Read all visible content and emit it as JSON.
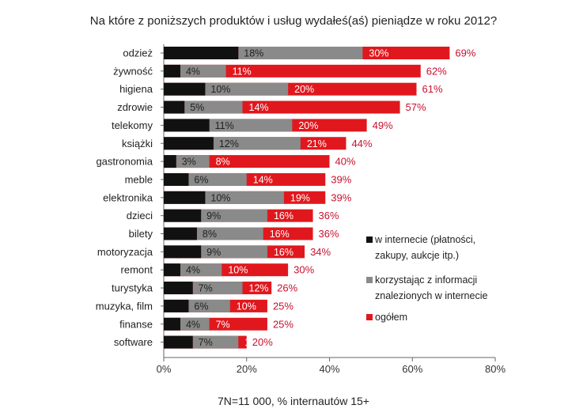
{
  "chart_data": {
    "type": "bar",
    "title": "Na które z poniższych produktów i usług wydałeś(aś) pieniądze w roku 2012?",
    "footnote": "7N=11 000, % internautów 15+",
    "categories": [
      "odzież",
      "żywność",
      "higiena",
      "zdrowie",
      "telekomy",
      "książki",
      "gastronomia",
      "meble",
      "elektronika",
      "dzieci",
      "bilety",
      "motoryzacja",
      "remont",
      "turystyka",
      "muzyka, film",
      "finanse",
      "software"
    ],
    "series": [
      {
        "name": "w internecie (płatności, zakupy, aukcje itp.)",
        "color": "#111111",
        "values": [
          18,
          4,
          10,
          5,
          11,
          12,
          3,
          6,
          10,
          9,
          8,
          9,
          4,
          7,
          6,
          4,
          7
        ]
      },
      {
        "name": "korzystając z informacji znalezionych w internecie",
        "color": "#8a8a8a",
        "values": [
          30,
          11,
          20,
          14,
          20,
          21,
          8,
          14,
          19,
          16,
          16,
          16,
          10,
          12,
          10,
          7,
          11
        ]
      },
      {
        "name": "ogółem",
        "color": "#e0181e",
        "values": [
          69,
          62,
          61,
          57,
          49,
          44,
          40,
          39,
          39,
          36,
          36,
          34,
          30,
          26,
          25,
          25,
          20
        ]
      }
    ],
    "legend": [
      {
        "lines": [
          "w internecie (płatności,",
          "zakupy, aukcje itp.)"
        ],
        "color": "#111111"
      },
      {
        "lines": [
          "korzystając z informacji",
          "znalezionych w internecie"
        ],
        "color": "#8a8a8a"
      },
      {
        "lines": [
          "ogółem"
        ],
        "color": "#e0181e"
      }
    ],
    "xlim": [
      0,
      80
    ],
    "xticks": [
      0,
      20,
      40,
      60,
      80
    ],
    "xtick_labels": [
      "0%",
      "20%",
      "40%",
      "60%",
      "80%"
    ],
    "value_suffix": "%",
    "grid": false,
    "legend_position": "right"
  }
}
